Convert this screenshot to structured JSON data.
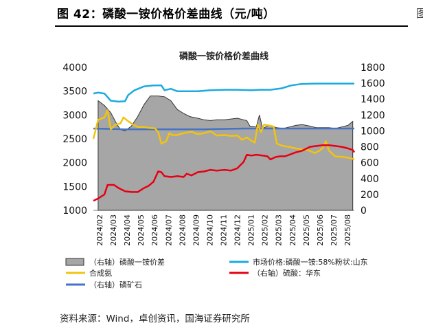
{
  "header": {
    "figure_title": "图 42：磷酸一铵价格价差曲线（元/吨）",
    "edge_fragment": "图"
  },
  "footer": {
    "source": "资料来源：Wind，卓创资讯，国海证券研究所"
  },
  "colors": {
    "spread_fill": "#A6A6A6",
    "market_price": "#1AAAE0",
    "synthetic_ammonia": "#F2C40F",
    "sulfuric_acid": "#E60012",
    "phosphate_rock": "#4472C4"
  },
  "chart_data": {
    "type": "area+line",
    "title": "磷酸一铵价格价差曲线",
    "x_months": [
      "2024/02",
      "2024/03",
      "2024/04",
      "2024/05",
      "2024/06",
      "2024/07",
      "2024/08",
      "2024/09",
      "2024/10",
      "2024/11",
      "2024/12",
      "2025/01",
      "2025/02",
      "2025/03",
      "2025/04",
      "2025/05",
      "2025/06",
      "2025/07",
      "2025/08"
    ],
    "x_range": [
      2024.05,
      2025.7
    ],
    "left_axis": {
      "min": 1000,
      "max": 4000,
      "ticks": [
        1000,
        1500,
        2000,
        2500,
        3000,
        3500,
        4000
      ]
    },
    "right_axis": {
      "min": 0,
      "max": 1800,
      "ticks": [
        0,
        200,
        400,
        600,
        800,
        1000,
        1200,
        1400,
        1600,
        1800
      ]
    },
    "legend": [
      {
        "key": "spread",
        "label": "（右轴）磷酸一铵价差",
        "marker": "box"
      },
      {
        "key": "market",
        "label": "市场价格:磷酸一铵:58%粉状:山东",
        "marker": "line"
      },
      {
        "key": "ammonia",
        "label": "合成氨",
        "marker": "line"
      },
      {
        "key": "sulfuric",
        "label": "（右轴）硫酸：华东",
        "marker": "line"
      },
      {
        "key": "rock",
        "label": "（右轴）磷矿石",
        "marker": "line"
      }
    ],
    "series": [
      {
        "key": "spread",
        "name": "（右轴）磷酸一铵价差",
        "axis": "right",
        "style": "area",
        "points": [
          [
            2024.08,
            1380
          ],
          [
            2024.12,
            1320
          ],
          [
            2024.16,
            1230
          ],
          [
            2024.2,
            1080
          ],
          [
            2024.22,
            1020
          ],
          [
            2024.25,
            1000
          ],
          [
            2024.29,
            1060
          ],
          [
            2024.33,
            1180
          ],
          [
            2024.37,
            1330
          ],
          [
            2024.41,
            1440
          ],
          [
            2024.46,
            1440
          ],
          [
            2024.5,
            1430
          ],
          [
            2024.54,
            1380
          ],
          [
            2024.58,
            1270
          ],
          [
            2024.62,
            1220
          ],
          [
            2024.66,
            1180
          ],
          [
            2024.71,
            1160
          ],
          [
            2024.75,
            1140
          ],
          [
            2024.79,
            1130
          ],
          [
            2024.83,
            1140
          ],
          [
            2024.88,
            1140
          ],
          [
            2024.92,
            1150
          ],
          [
            2024.96,
            1160
          ],
          [
            2025.0,
            1140
          ],
          [
            2025.02,
            1130
          ],
          [
            2025.04,
            1060
          ],
          [
            2025.08,
            1050
          ],
          [
            2025.1,
            1200
          ],
          [
            2025.12,
            1030
          ],
          [
            2025.16,
            1070
          ],
          [
            2025.21,
            1040
          ],
          [
            2025.25,
            1030
          ],
          [
            2025.29,
            1050
          ],
          [
            2025.33,
            1070
          ],
          [
            2025.37,
            1080
          ],
          [
            2025.42,
            1060
          ],
          [
            2025.46,
            1040
          ],
          [
            2025.5,
            1040
          ],
          [
            2025.54,
            1040
          ],
          [
            2025.58,
            1030
          ],
          [
            2025.62,
            1050
          ],
          [
            2025.66,
            1070
          ],
          [
            2025.69,
            1120
          ]
        ]
      },
      {
        "key": "market",
        "name": "市场价格:磷酸一铵:58%粉状:山东",
        "axis": "left",
        "style": "line",
        "points": [
          [
            2024.05,
            3450
          ],
          [
            2024.08,
            3470
          ],
          [
            2024.12,
            3450
          ],
          [
            2024.16,
            3300
          ],
          [
            2024.21,
            3280
          ],
          [
            2024.25,
            3290
          ],
          [
            2024.27,
            3420
          ],
          [
            2024.31,
            3520
          ],
          [
            2024.37,
            3600
          ],
          [
            2024.43,
            3620
          ],
          [
            2024.48,
            3620
          ],
          [
            2024.5,
            3520
          ],
          [
            2024.54,
            3550
          ],
          [
            2024.58,
            3500
          ],
          [
            2024.64,
            3500
          ],
          [
            2024.71,
            3500
          ],
          [
            2024.79,
            3520
          ],
          [
            2024.88,
            3530
          ],
          [
            2024.96,
            3530
          ],
          [
            2025.05,
            3520
          ],
          [
            2025.1,
            3530
          ],
          [
            2025.17,
            3530
          ],
          [
            2025.24,
            3560
          ],
          [
            2025.3,
            3620
          ],
          [
            2025.36,
            3650
          ],
          [
            2025.45,
            3660
          ],
          [
            2025.55,
            3660
          ],
          [
            2025.65,
            3660
          ],
          [
            2025.7,
            3660
          ]
        ]
      },
      {
        "key": "ammonia",
        "name": "合成氨",
        "axis": "left",
        "style": "line",
        "points": [
          [
            2024.05,
            2500
          ],
          [
            2024.08,
            2900
          ],
          [
            2024.12,
            2950
          ],
          [
            2024.14,
            3100
          ],
          [
            2024.16,
            2700
          ],
          [
            2024.19,
            2800
          ],
          [
            2024.22,
            2820
          ],
          [
            2024.24,
            2950
          ],
          [
            2024.27,
            2870
          ],
          [
            2024.3,
            2800
          ],
          [
            2024.33,
            2750
          ],
          [
            2024.37,
            2750
          ],
          [
            2024.4,
            2730
          ],
          [
            2024.44,
            2720
          ],
          [
            2024.46,
            2640
          ],
          [
            2024.48,
            2400
          ],
          [
            2024.51,
            2450
          ],
          [
            2024.53,
            2620
          ],
          [
            2024.55,
            2580
          ],
          [
            2024.58,
            2580
          ],
          [
            2024.62,
            2620
          ],
          [
            2024.67,
            2650
          ],
          [
            2024.71,
            2600
          ],
          [
            2024.75,
            2620
          ],
          [
            2024.79,
            2660
          ],
          [
            2024.83,
            2570
          ],
          [
            2024.88,
            2580
          ],
          [
            2024.92,
            2560
          ],
          [
            2024.96,
            2570
          ],
          [
            2024.99,
            2480
          ],
          [
            2025.02,
            2530
          ],
          [
            2025.05,
            2460
          ],
          [
            2025.07,
            2420
          ],
          [
            2025.09,
            2800
          ],
          [
            2025.11,
            2640
          ],
          [
            2025.13,
            2800
          ],
          [
            2025.16,
            2780
          ],
          [
            2025.19,
            2760
          ],
          [
            2025.21,
            2400
          ],
          [
            2025.25,
            2350
          ],
          [
            2025.29,
            2330
          ],
          [
            2025.33,
            2300
          ],
          [
            2025.37,
            2280
          ],
          [
            2025.41,
            2260
          ],
          [
            2025.45,
            2200
          ],
          [
            2025.48,
            2250
          ],
          [
            2025.5,
            2310
          ],
          [
            2025.52,
            2450
          ],
          [
            2025.54,
            2250
          ],
          [
            2025.58,
            2130
          ],
          [
            2025.63,
            2120
          ],
          [
            2025.68,
            2090
          ],
          [
            2025.7,
            2070
          ]
        ]
      },
      {
        "key": "sulfuric",
        "name": "（右轴）硫酸：华东",
        "axis": "right",
        "style": "line",
        "points": [
          [
            2024.05,
            120
          ],
          [
            2024.08,
            150
          ],
          [
            2024.12,
            200
          ],
          [
            2024.14,
            320
          ],
          [
            2024.18,
            320
          ],
          [
            2024.21,
            280
          ],
          [
            2024.25,
            240
          ],
          [
            2024.29,
            230
          ],
          [
            2024.33,
            230
          ],
          [
            2024.37,
            280
          ],
          [
            2024.4,
            310
          ],
          [
            2024.43,
            360
          ],
          [
            2024.46,
            490
          ],
          [
            2024.48,
            480
          ],
          [
            2024.5,
            430
          ],
          [
            2024.54,
            420
          ],
          [
            2024.58,
            430
          ],
          [
            2024.62,
            420
          ],
          [
            2024.64,
            460
          ],
          [
            2024.67,
            440
          ],
          [
            2024.71,
            480
          ],
          [
            2024.75,
            490
          ],
          [
            2024.79,
            510
          ],
          [
            2024.83,
            500
          ],
          [
            2024.88,
            510
          ],
          [
            2024.92,
            500
          ],
          [
            2024.96,
            530
          ],
          [
            2025.0,
            610
          ],
          [
            2025.02,
            700
          ],
          [
            2025.05,
            690
          ],
          [
            2025.08,
            700
          ],
          [
            2025.12,
            690
          ],
          [
            2025.15,
            680
          ],
          [
            2025.17,
            640
          ],
          [
            2025.2,
            670
          ],
          [
            2025.23,
            680
          ],
          [
            2025.26,
            680
          ],
          [
            2025.29,
            700
          ],
          [
            2025.33,
            730
          ],
          [
            2025.37,
            750
          ],
          [
            2025.42,
            800
          ],
          [
            2025.46,
            810
          ],
          [
            2025.5,
            820
          ],
          [
            2025.54,
            820
          ],
          [
            2025.58,
            810
          ],
          [
            2025.62,
            800
          ],
          [
            2025.66,
            780
          ],
          [
            2025.69,
            760
          ],
          [
            2025.7,
            730
          ]
        ]
      },
      {
        "key": "rock",
        "name": "（右轴）磷矿石",
        "axis": "right",
        "style": "line",
        "points": [
          [
            2024.05,
            1030
          ],
          [
            2024.25,
            1020
          ],
          [
            2024.5,
            1020
          ],
          [
            2024.75,
            1020
          ],
          [
            2025.0,
            1030
          ],
          [
            2025.25,
            1030
          ],
          [
            2025.5,
            1030
          ],
          [
            2025.7,
            1030
          ]
        ]
      }
    ]
  }
}
